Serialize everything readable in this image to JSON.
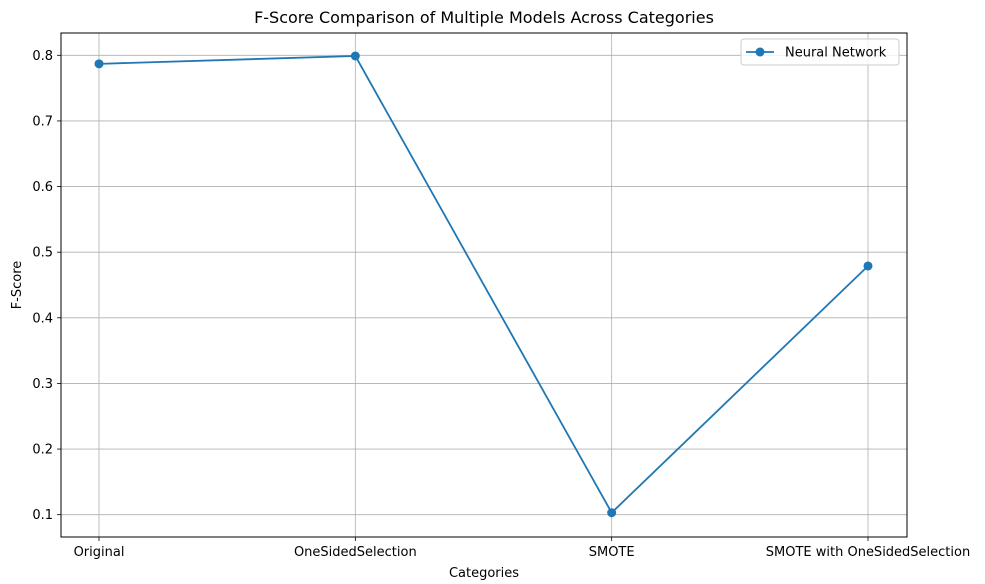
{
  "chart_data": {
    "type": "line",
    "title": "F-Score Comparison of Multiple Models Across Categories",
    "xlabel": "Categories",
    "ylabel": "F-Score",
    "categories": [
      "Original",
      "OneSidedSelection",
      "SMOTE",
      "SMOTE with OneSidedSelection"
    ],
    "series": [
      {
        "name": "Neural Network",
        "values": [
          0.787,
          0.799,
          0.103,
          0.479
        ],
        "color": "#1f77b4",
        "marker": "circle"
      }
    ],
    "ylim": [
      0.066,
      0.834
    ],
    "yticks": [
      "0.1",
      "0.2",
      "0.3",
      "0.4",
      "0.5",
      "0.6",
      "0.7",
      "0.8"
    ],
    "grid": true,
    "legend_position": "top-right"
  }
}
